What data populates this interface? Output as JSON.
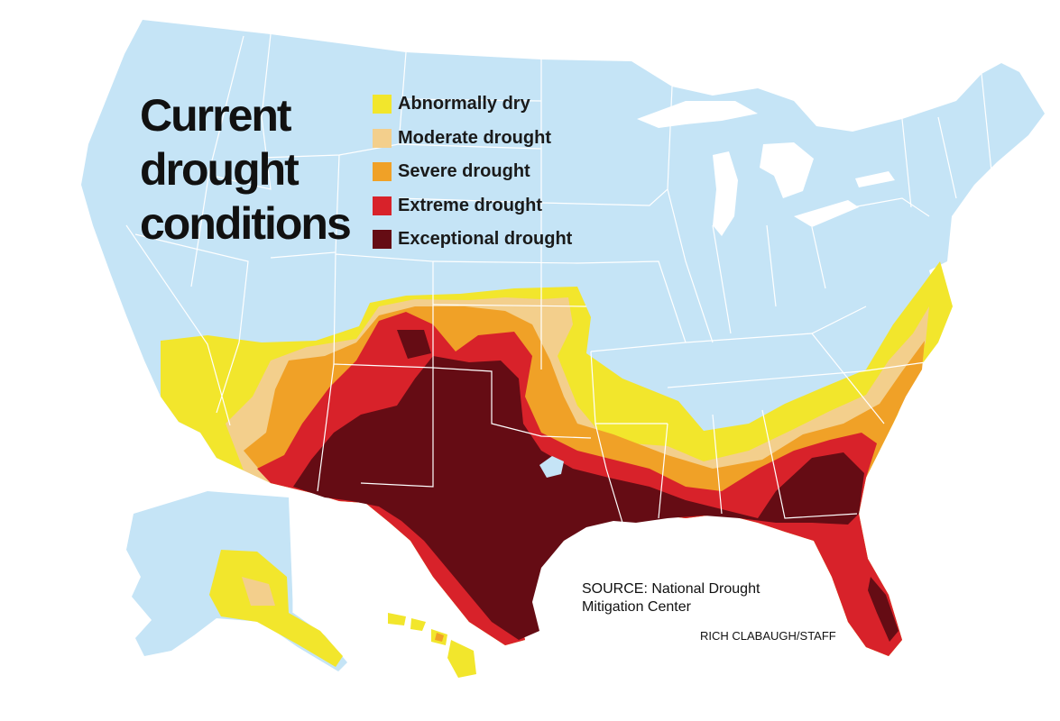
{
  "title": {
    "line1": "Current",
    "line2": "drought",
    "line3": "conditions"
  },
  "legend": [
    {
      "label": "Abnormally dry",
      "color": "#f2e62c"
    },
    {
      "label": "Moderate drought",
      "color": "#f3cf8c"
    },
    {
      "label": "Severe drought",
      "color": "#f0a127"
    },
    {
      "label": "Extreme drought",
      "color": "#d8222a"
    },
    {
      "label": "Exceptional drought",
      "color": "#650c14"
    }
  ],
  "colors": {
    "land": "#c5e4f6",
    "water": "#ffffff",
    "borders": "#ffffff"
  },
  "source": {
    "line1": "SOURCE: National Drought",
    "line2": "Mitigation Center"
  },
  "credit": "RICH CLABAUGH/STAFF"
}
